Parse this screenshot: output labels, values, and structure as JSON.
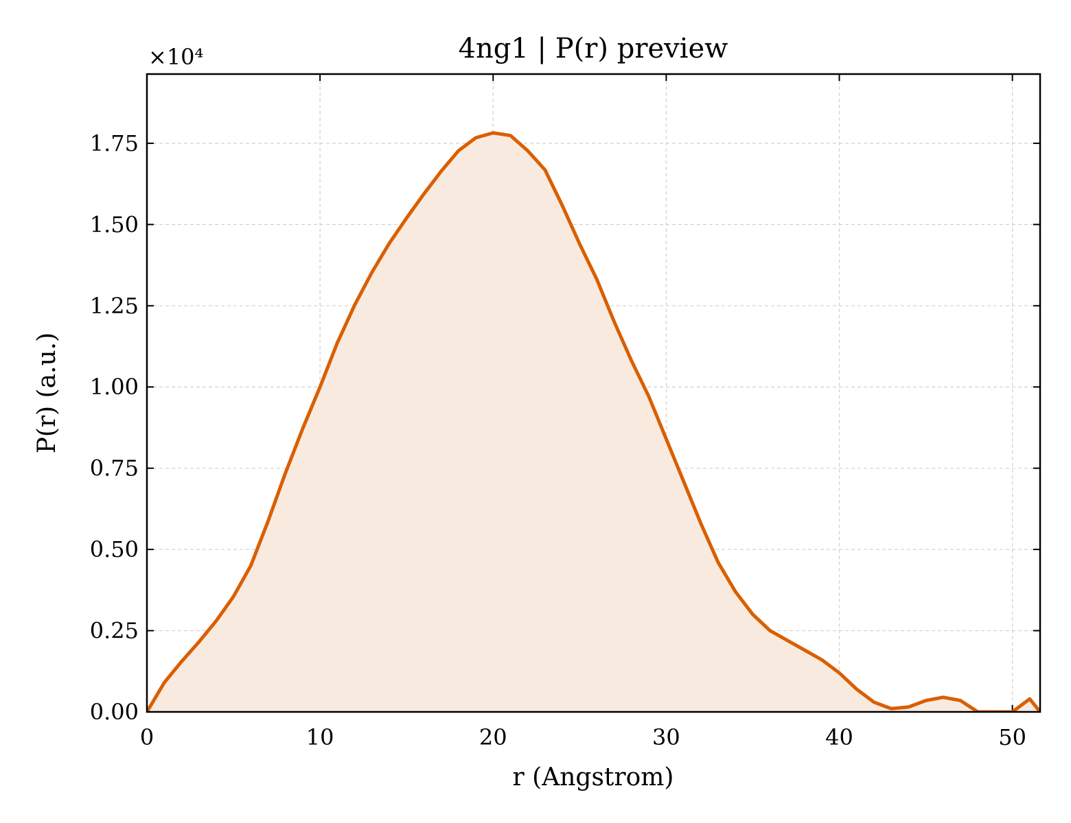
{
  "chart_data": {
    "type": "line",
    "title": "4ng1 | P(r) preview",
    "xlabel": "r (Angstrom)",
    "ylabel": "P(r) (a.u.)",
    "offset_label": "×10⁴",
    "x": [
      0,
      1,
      2,
      3,
      4,
      5,
      6,
      7,
      8,
      9,
      10,
      11,
      12,
      13,
      14,
      15,
      16,
      17,
      18,
      19,
      20,
      21,
      22,
      23,
      24,
      25,
      26,
      27,
      28,
      29,
      30,
      31,
      32,
      33,
      34,
      35,
      36,
      37,
      38,
      39,
      40,
      41,
      42,
      43,
      44,
      45,
      46,
      47,
      48,
      49,
      50,
      51,
      51.6
    ],
    "series": [
      {
        "name": "P(r)",
        "color": "#d95f02",
        "fill": "#f9eadf",
        "values": [
          0,
          0.09,
          0.155,
          0.215,
          0.28,
          0.355,
          0.45,
          0.587,
          0.735,
          0.872,
          1.0,
          1.136,
          1.252,
          1.353,
          1.442,
          1.52,
          1.594,
          1.664,
          1.727,
          1.767,
          1.782,
          1.774,
          1.727,
          1.668,
          1.558,
          1.44,
          1.33,
          1.2,
          1.08,
          0.97,
          0.84,
          0.71,
          0.58,
          0.46,
          0.37,
          0.3,
          0.25,
          0.22,
          0.19,
          0.16,
          0.12,
          0.07,
          0.03,
          0.01,
          0.015,
          0.035,
          0.045,
          0.035,
          0,
          0,
          0,
          0.04,
          0
        ]
      }
    ],
    "xlim": [
      0,
      51.6
    ],
    "xticks": [
      0,
      10,
      20,
      30,
      40,
      50
    ],
    "ylim": [
      0,
      1.963
    ],
    "yticks": [
      {
        "value": 0,
        "label": "0.00"
      },
      {
        "value": 0.25,
        "label": "0.25"
      },
      {
        "value": 0.5,
        "label": "0.50"
      },
      {
        "value": 0.75,
        "label": "0.75"
      },
      {
        "value": 1,
        "label": "1.00"
      },
      {
        "value": 1.25,
        "label": "1.25"
      },
      {
        "value": 1.5,
        "label": "1.50"
      },
      {
        "value": 1.75,
        "label": "1.75"
      }
    ],
    "grid": true
  }
}
